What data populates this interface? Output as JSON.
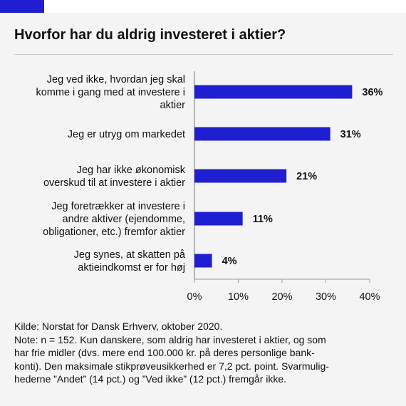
{
  "header": {
    "title": "Hvorfor har du aldrig investeret i aktier?"
  },
  "colors": {
    "bar": "#1f1fd1",
    "accent": "#1f1fd1",
    "background": "#f4f4f4"
  },
  "chart_data": {
    "type": "bar",
    "orientation": "horizontal",
    "categories": [
      [
        "Jeg ved ikke, hvordan jeg skal",
        "komme i gang med at investere i",
        "aktier"
      ],
      [
        "Jeg er utryg om markedet"
      ],
      [
        "Jeg har ikke økonomisk",
        "overskud til at investere i aktier"
      ],
      [
        "Jeg foretrækker at investere i",
        "andre aktiver (ejendomme,",
        "obligationer, etc.)  fremfor aktier"
      ],
      [
        "Jeg synes, at skatten på",
        "aktieindkomst er for høj"
      ]
    ],
    "values": [
      36,
      31,
      21,
      11,
      4
    ],
    "value_labels": [
      "36%",
      "31%",
      "21%",
      "11%",
      "4%"
    ],
    "xlim": [
      0,
      40
    ],
    "xticks": [
      0,
      10,
      20,
      30,
      40
    ],
    "xtick_labels": [
      "0%",
      "10%",
      "20%",
      "30%",
      "40%"
    ],
    "grid": false
  },
  "footer": {
    "source": "Kilde: Norstat for Dansk Erhverv, oktober 2020.",
    "note_lines": [
      "Note: n = 152. Kun danskere, som aldrig har investeret i aktier, og som",
      "har frie midler (dvs. mere end 100.000 kr. på deres personlige bank-",
      "konti). Den maksimale stikprøveusikkerhed er 7,2 pct. point. Svarmulig-",
      "hederne ”Andet” (14 pct.) og ”Ved ikke” (12 pct.) fremgår ikke."
    ]
  }
}
